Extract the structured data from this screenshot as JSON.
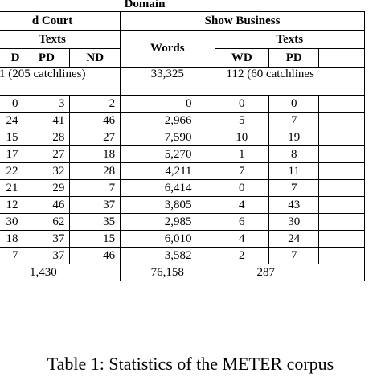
{
  "domain_label": "Domain",
  "court": {
    "header": "d Court",
    "texts_label": "Texts",
    "columns": [
      "D",
      "PD",
      "ND"
    ]
  },
  "show": {
    "header": "Show Business",
    "words_label": "Words",
    "texts_label": "Texts",
    "columns": [
      "WD",
      "PD"
    ]
  },
  "totals_row": {
    "court_texts": "1 (205 catchlines)",
    "show_words": "33,325",
    "show_texts": "112 (60 catchlines"
  },
  "rows": [
    {
      "c_d": "0",
      "c_pd": "3",
      "c_nd": "2",
      "words": "0",
      "wd": "0",
      "pd": "0"
    },
    {
      "c_d": "24",
      "c_pd": "41",
      "c_nd": "46",
      "words": "2,966",
      "wd": "5",
      "pd": "7"
    },
    {
      "c_d": "15",
      "c_pd": "28",
      "c_nd": "27",
      "words": "7,590",
      "wd": "10",
      "pd": "19"
    },
    {
      "c_d": "17",
      "c_pd": "27",
      "c_nd": "18",
      "words": "5,270",
      "wd": "1",
      "pd": "8"
    },
    {
      "c_d": "22",
      "c_pd": "32",
      "c_nd": "28",
      "words": "4,211",
      "wd": "7",
      "pd": "11"
    },
    {
      "c_d": "21",
      "c_pd": "29",
      "c_nd": "7",
      "words": "6,414",
      "wd": "0",
      "pd": "7"
    },
    {
      "c_d": "12",
      "c_pd": "46",
      "c_nd": "37",
      "words": "3,805",
      "wd": "4",
      "pd": "43"
    },
    {
      "c_d": "30",
      "c_pd": "62",
      "c_nd": "35",
      "words": "2,985",
      "wd": "6",
      "pd": "30"
    },
    {
      "c_d": "18",
      "c_pd": "37",
      "c_nd": "15",
      "words": "6,010",
      "wd": "4",
      "pd": "24"
    },
    {
      "c_d": "7",
      "c_pd": "37",
      "c_nd": "46",
      "words": "3,582",
      "wd": "2",
      "pd": "7"
    }
  ],
  "footer": {
    "court_texts": "1,430",
    "show_words": "76,158",
    "show_texts": "287"
  },
  "caption": "Table 1: Statistics of the METER corpus"
}
